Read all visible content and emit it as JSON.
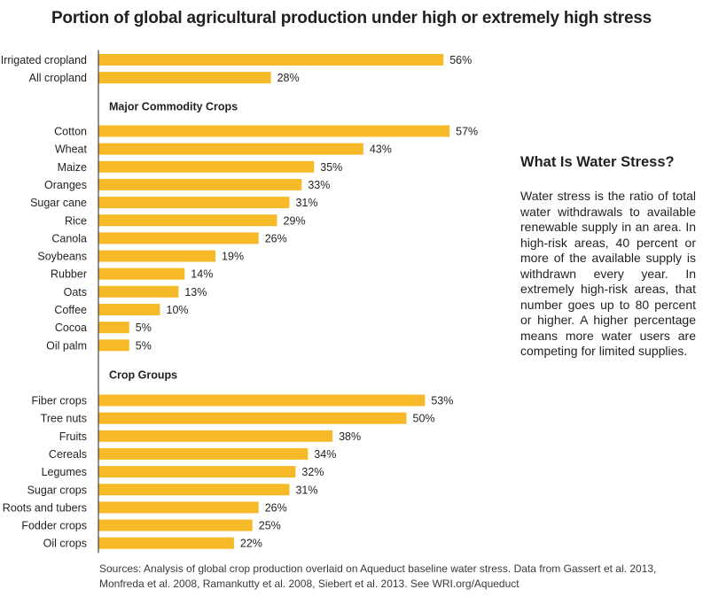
{
  "chart_data": {
    "type": "bar",
    "orientation": "horizontal",
    "title": "Portion of global agricultural production under high or extremely high stress",
    "value_suffix": "%",
    "bar_color": "#f6b928",
    "groups": [
      {
        "heading": "",
        "categories": [
          "Irrigated cropland",
          "All cropland"
        ],
        "values": [
          56,
          28
        ]
      },
      {
        "heading": "Major Commodity Crops",
        "categories": [
          "Cotton",
          "Wheat",
          "Maize",
          "Oranges",
          "Sugar cane",
          "Rice",
          "Canola",
          "Soybeans",
          "Rubber",
          "Oats",
          "Coffee",
          "Cocoa",
          "Oil palm"
        ],
        "values": [
          57,
          43,
          35,
          33,
          31,
          29,
          26,
          19,
          14,
          13,
          10,
          5,
          5
        ]
      },
      {
        "heading": "Crop Groups",
        "categories": [
          "Fiber crops",
          "Tree nuts",
          "Fruits",
          "Cereals",
          "Legumes",
          "Sugar crops",
          "Roots and tubers",
          "Fodder crops",
          "Oil crops"
        ],
        "values": [
          53,
          50,
          38,
          34,
          32,
          31,
          26,
          25,
          22
        ]
      }
    ]
  },
  "sidebar": {
    "heading": "What Is Water Stress?",
    "body": "Water stress is the ratio of total water withdrawals to available renewable supply in an area. In high-risk areas, 40 percent or more of the available supply is withdrawn every year. In extremely high-risk areas, that number goes up to 80 percent or higher. A higher percentage means more water users are competing for limited supplies."
  },
  "source_note": "Sources: Analysis of global crop production overlaid on Aqueduct baseline water stress. Data from Gassert et al. 2013, Monfreda et al. 2008, Ramankutty et al. 2008, Siebert et al. 2013. See WRI.org/Aqueduct"
}
